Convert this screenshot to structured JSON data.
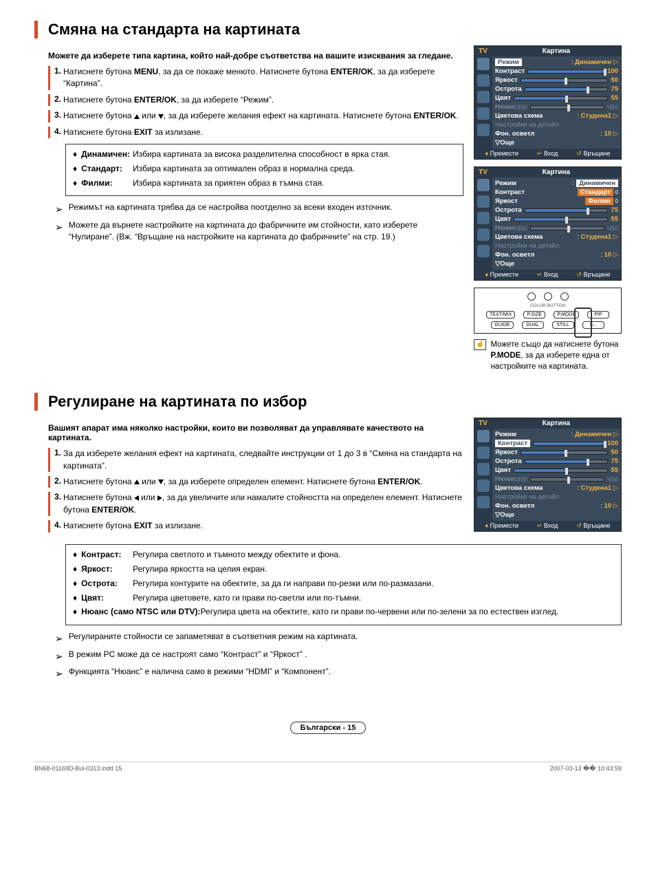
{
  "section1": {
    "title": "Смяна на стандарта на картината",
    "intro": "Можете да изберете типа картина, който най-добре съответства на вашите изисквания за гледане.",
    "steps": [
      {
        "n": "1.",
        "t": "Натиснете бутона <b>MENU</b>, за да се покаже менюто. Натиснете бутона <b>ENTER/OK</b>, за да изберете “Картина”."
      },
      {
        "n": "2.",
        "t": "Натиснете бутона <b>ENTER/OK</b>, за да изберете “Режим”."
      },
      {
        "n": "3.",
        "t": "Натиснете бутона <span class='arrow-up'></span> или <span class='arrow-down'></span>, за да изберете желания ефект на картината. Натиснете бутона <b>ENTER/OK</b>."
      },
      {
        "n": "4.",
        "t": "Натиснете бутона <b>EXIT</b> за излизане."
      }
    ],
    "defs": [
      {
        "term": "Динамичен:",
        "txt": "Избира картината за висока разделителна способност в ярка стая."
      },
      {
        "term": "Стандарт:",
        "txt": "Избира картината за оптимален образ в нормална среда."
      },
      {
        "term": "Филми:",
        "txt": "Избира картината за приятен образ в тъмна стая."
      }
    ],
    "notes": [
      "Режимът на картината трябва да се настройва поотделно за всеки входен източник.",
      "Можете да върнете настройките на картината до фабричните им стойности, като изберете “Нулиране”. (Вж. “Връщане на настройките на картината до фабричните” на стр. 19.)"
    ],
    "hint": "Можете също да натиснете бутона <b>P.MODE</b>, за да изберете една от настройките на картината."
  },
  "osd_common": {
    "tv": "TV",
    "title": "Картина",
    "rows": {
      "mode": "Режим",
      "mode_val": "Динамичен",
      "contrast": "Контраст",
      "contrast_val": "100",
      "bright": "Яркост",
      "bright_val": "50",
      "sharp": "Острота",
      "sharp_val": "75",
      "colour": "Цвят",
      "colour_val": "55",
      "tint": "Нюанс",
      "tint_l": "З50",
      "tint_r": "Ч50",
      "scheme": "Цветова схема",
      "scheme_val": "Студена1",
      "detail": "Настройки на детайл",
      "bkl": "Фон. осветл",
      "bkl_val": "10",
      "more": "Още"
    },
    "ftr": {
      "move": "Премести",
      "enter": "Вход",
      "return": "Връщане"
    }
  },
  "osd2_opts": {
    "sel": "Динамичен",
    "o2": "Стандарт",
    "o3": "Филми"
  },
  "remote": {
    "btns": [
      "TEXT/MIX",
      "P.SIZE",
      "P.MODE",
      "PIP",
      "GUIDE",
      "DUAL",
      "STILL",
      "S..."
    ],
    "lbl": "COLOR BUTTON"
  },
  "section2": {
    "title": "Регулиране на картината по избор",
    "intro": "Вашият апарат има няколко настройки, които ви позволяват да управлявате качеството на картината.",
    "steps": [
      {
        "n": "1.",
        "t": "За да изберете желания ефект на картината, следвайте инструкции от 1 до 3 в “Смяна на стандарта на картината”."
      },
      {
        "n": "2.",
        "t": "Натиснете бутона <span class='arrow-up'></span> или <span class='arrow-down'></span>, за да изберете определен елемент. Натиснете бутона <b>ENTER/OK</b>."
      },
      {
        "n": "3.",
        "t": "Натиснете бутона <span class='arrow-left'></span> или <span class='arrow-right-t'></span>, за да увеличите или намалите стойността на определен елемент. Натиснете бутона <b>ENTER/OK</b>."
      },
      {
        "n": "4.",
        "t": "Натиснете бутона <b>EXIT</b> за излизане."
      }
    ],
    "defs": [
      {
        "term": "Контраст:",
        "txt": "Регулира светлото и тъмното между обектите и фона."
      },
      {
        "term": "Яркост:",
        "txt": "Регулира яркостта на целия екран."
      },
      {
        "term": "Острота:",
        "txt": "Регулира контурите на обектите, за да ги направи по-резки или по-размазани."
      },
      {
        "term": "Цвят:",
        "txt": "Регулира цветовете, като ги прави по-светли или по-тъмни."
      },
      {
        "term": "Нюанс (само NTSC или DTV):",
        "txt": "Регулира цвета на обектите, като ги прави по-червени или по-зелени за по естествен изглед."
      }
    ],
    "notes": [
      "Регулираните стойности се запаметяват в съответния режим на картината.",
      "В режим PC може да се настроят само “Контраст” и “Яркост” .",
      "Функцията “Нюанс” е налична само в режими “HDMI” и “Компонент”."
    ]
  },
  "footer": {
    "page": "Български - 15",
    "doc_l": "BN68-01169D-Bul-0313.indd   15",
    "doc_r": "2007-03-13   �� 10:43:59"
  }
}
